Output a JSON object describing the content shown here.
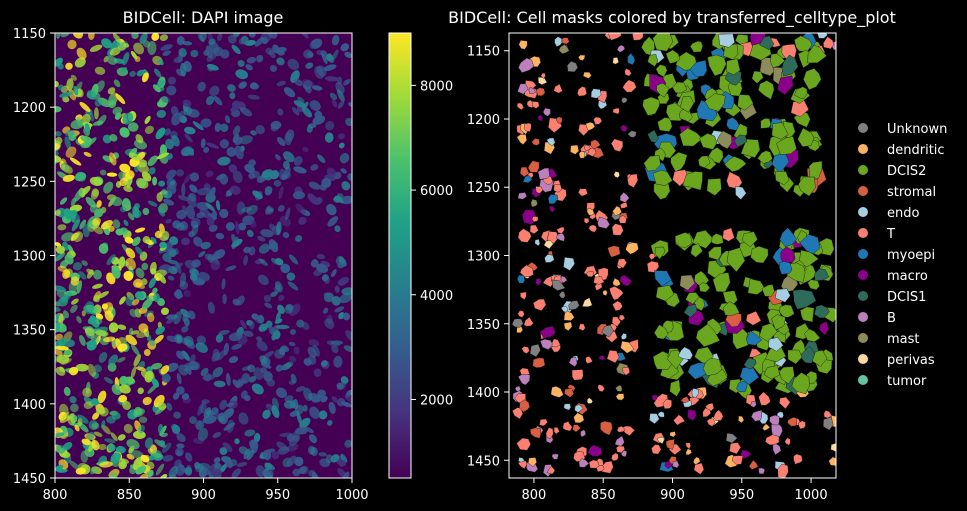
{
  "chart_data": [
    {
      "type": "heatmap",
      "title": "BIDCell: DAPI image",
      "xlabel": "",
      "ylabel": "",
      "xlim": [
        800,
        1000
      ],
      "ylim": [
        1450,
        1150
      ],
      "x_ticks": [
        "800",
        "850",
        "900",
        "950",
        "1000"
      ],
      "y_ticks": [
        "1150",
        "1200",
        "1250",
        "1300",
        "1350",
        "1400",
        "1450"
      ],
      "colormap": "viridis",
      "colorbar": {
        "min": 500,
        "max": 9000,
        "ticks": [
          "2000",
          "4000",
          "6000",
          "8000"
        ]
      },
      "colors": [
        "#440154",
        "#46327e",
        "#365c8d",
        "#277f8e",
        "#1fa187",
        "#4ac16d",
        "#a0da39",
        "#fde725"
      ]
    },
    {
      "type": "scatter",
      "title": "BIDCell: Cell masks colored by transferred_celltype_plot",
      "xlabel": "",
      "ylabel": "",
      "xlim": [
        782,
        1018
      ],
      "ylim": [
        1463,
        1137
      ],
      "x_ticks": [
        "800",
        "850",
        "900",
        "950",
        "1000"
      ],
      "y_ticks": [
        "1150",
        "1200",
        "1250",
        "1300",
        "1350",
        "1400",
        "1450"
      ],
      "legend_placement": "right",
      "series": [
        {
          "name": "Unknown",
          "color": "#808080"
        },
        {
          "name": "dendritic",
          "color": "#fdb462"
        },
        {
          "name": "DCIS2",
          "color": "#6aa61e"
        },
        {
          "name": "stromal",
          "color": "#d95f43"
        },
        {
          "name": "endo",
          "color": "#a6cee3"
        },
        {
          "name": "T",
          "color": "#fb8072"
        },
        {
          "name": "myoepi",
          "color": "#1f78b4"
        },
        {
          "name": "macro",
          "color": "#8b008b"
        },
        {
          "name": "DCIS1",
          "color": "#2f6b5a"
        },
        {
          "name": "B",
          "color": "#bc80bd"
        },
        {
          "name": "mast",
          "color": "#8c8c5a"
        },
        {
          "name": "perivas",
          "color": "#ffd8a0"
        },
        {
          "name": "tumor",
          "color": "#66c2a5"
        }
      ]
    }
  ]
}
